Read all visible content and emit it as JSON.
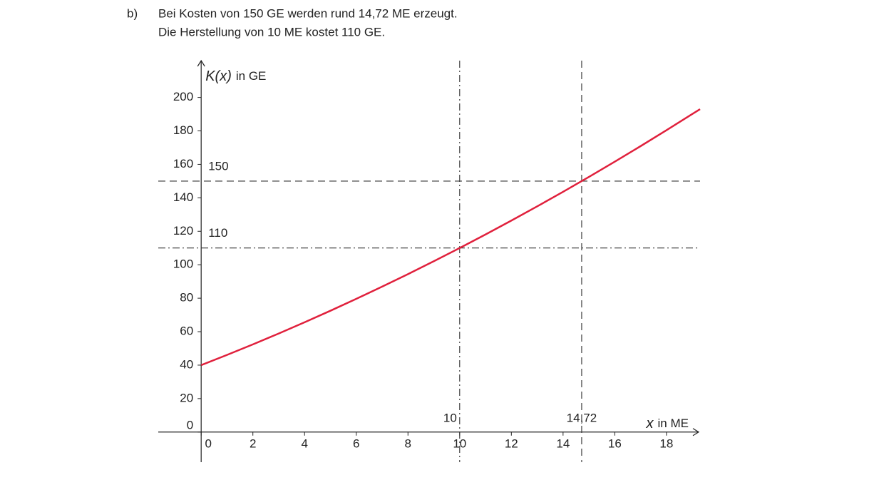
{
  "text": {
    "label": "b)",
    "lines": [
      "Bei Kosten von 150 GE werden rund 14,72 ME erzeugt.",
      "Die Herstellung von 10 ME kostet 110 GE."
    ]
  },
  "chart_data": {
    "type": "line",
    "y_label_var": "K(x)",
    "y_label_unit": "in GE",
    "x_label_var": "x",
    "x_label_unit": "in ME",
    "x": [
      0,
      1,
      2,
      3,
      4,
      5,
      6,
      7,
      8,
      9,
      10,
      11,
      12,
      13,
      14,
      15,
      16,
      17,
      18,
      19,
      19.3
    ],
    "series": [
      {
        "color": "#e0203c",
        "values": [
          40,
          46.1,
          52.4,
          58.9,
          65.6,
          72.5,
          79.6,
          86.9,
          94.4,
          102.1,
          110,
          118.1,
          126.4,
          134.9,
          143.6,
          152.5,
          161.6,
          170.9,
          180.4,
          190.1,
          193
        ]
      }
    ],
    "xlim": [
      -1.66,
      19.3
    ],
    "ylim": [
      -18,
      222
    ],
    "xticks": [
      0,
      2,
      4,
      6,
      8,
      10,
      12,
      14,
      16,
      18
    ],
    "yticks": [
      0,
      20,
      40,
      60,
      80,
      100,
      120,
      140,
      160,
      180,
      200
    ],
    "hlines": [
      {
        "value": 150,
        "style": "dashed"
      },
      {
        "value": 110,
        "style": "dashdot"
      }
    ],
    "vlines": [
      {
        "value": 10,
        "style": "dashdot"
      },
      {
        "value": 14.72,
        "label": "14,72",
        "style": "dashed"
      }
    ]
  }
}
